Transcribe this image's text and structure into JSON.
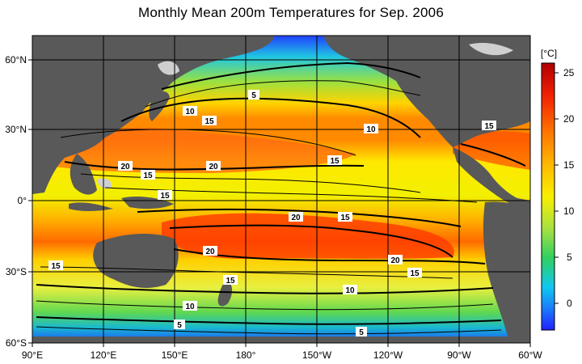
{
  "title": "Monthly Mean 200m Temperatures for Sep. 2006",
  "colorbar": {
    "unit_label": "[°C]",
    "ticks": [
      "25",
      "20",
      "15",
      "10",
      "5",
      "0"
    ],
    "tick_values": [
      25,
      20,
      15,
      10,
      5,
      0
    ],
    "range": [
      -3,
      26
    ],
    "colors": [
      "#1a1aff",
      "#1e78ff",
      "#12c8ff",
      "#18e0a0",
      "#40d040",
      "#a8e040",
      "#f0f000",
      "#ffd000",
      "#ff9a00",
      "#ff5a00",
      "#e01000",
      "#c00000"
    ]
  },
  "map": {
    "land_color": "#595959",
    "lon_labels": [
      "90°E",
      "120°E",
      "150°E",
      "180°",
      "150°W",
      "120°W",
      "90°W",
      "60°W"
    ],
    "lat_labels": [
      "60°N",
      "30°N",
      "0°",
      "30°S",
      "60°S"
    ],
    "contour_labels": [
      "5",
      "10",
      "15",
      "10",
      "15",
      "20",
      "20",
      "15",
      "15",
      "15",
      "20",
      "15",
      "20",
      "20",
      "15",
      "15",
      "15",
      "10",
      "10",
      "5",
      "5"
    ]
  },
  "chart_data": {
    "type": "heatmap",
    "title": "Monthly Mean 200m Temperatures for Sep. 2006",
    "xlabel": "",
    "ylabel": "",
    "x_ticks": [
      "90°E",
      "120°E",
      "150°E",
      "180°",
      "150°W",
      "120°W",
      "90°W",
      "60°W"
    ],
    "y_ticks": [
      "60°N",
      "30°N",
      "0°",
      "30°S",
      "60°S"
    ],
    "color_scale_unit": "[°C]",
    "color_scale_ticks": [
      25,
      20,
      15,
      10,
      5,
      0
    ],
    "grid": true
  }
}
